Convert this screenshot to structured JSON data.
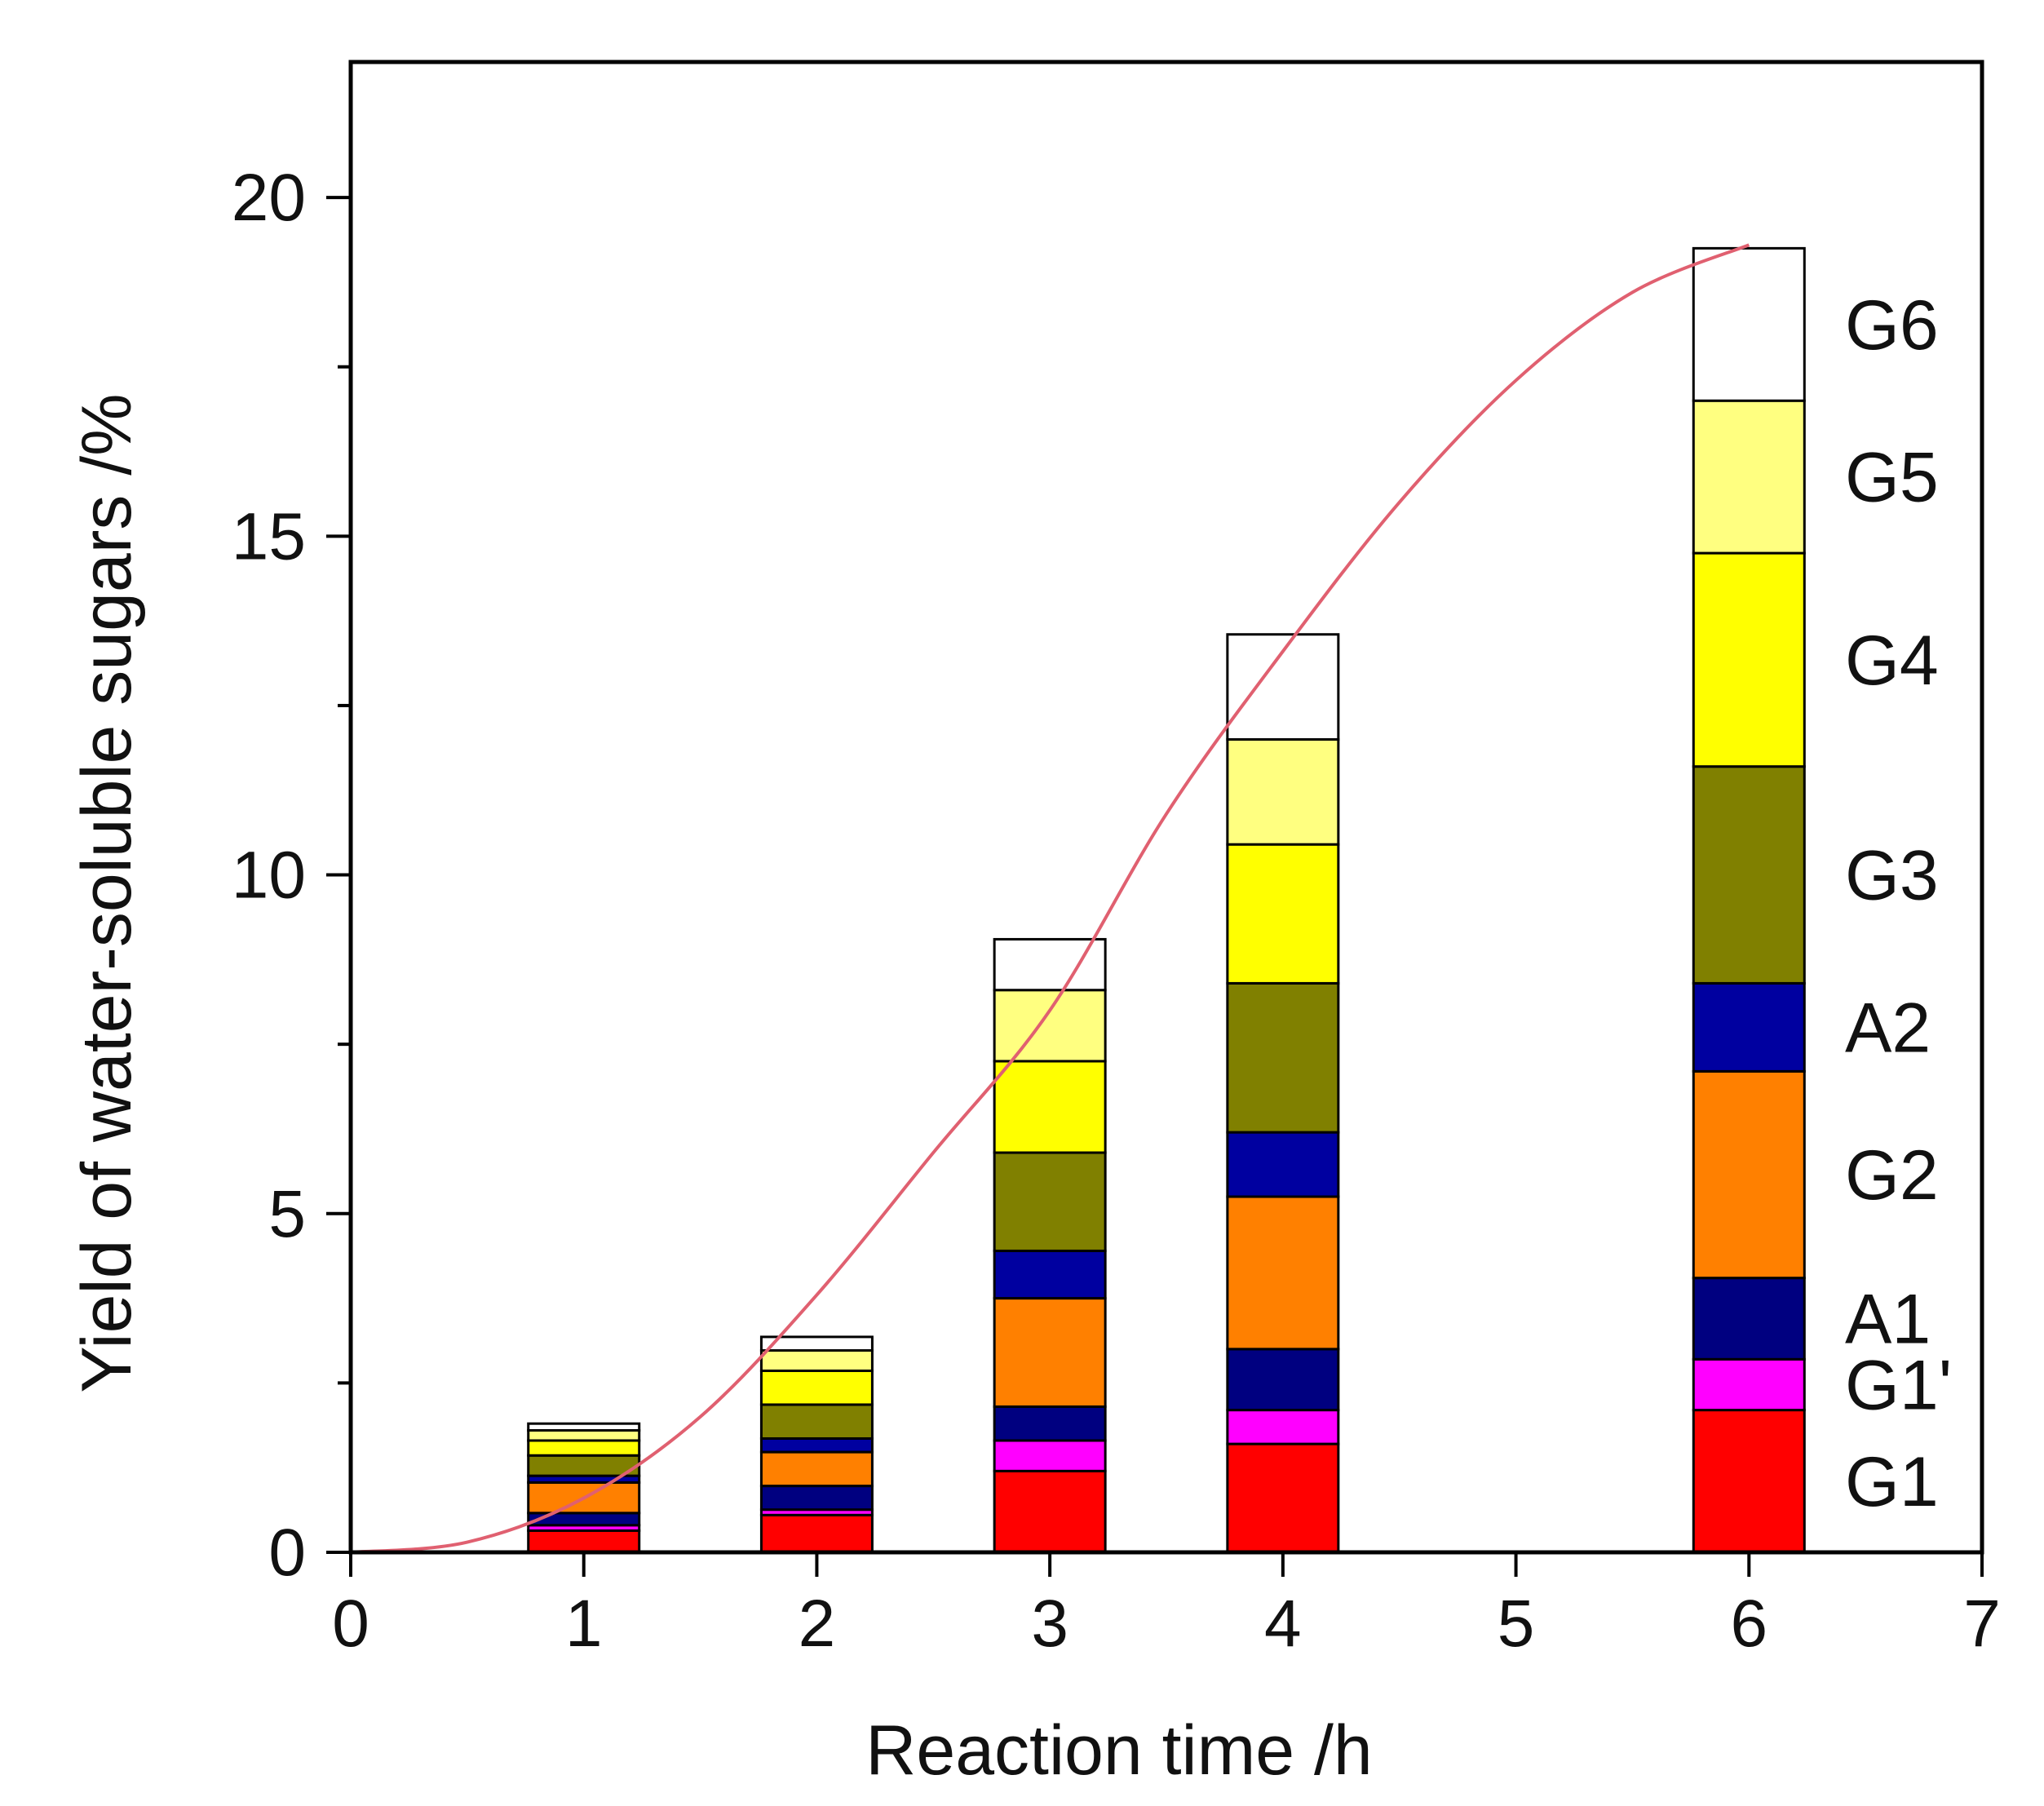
{
  "chart_data": {
    "type": "bar",
    "title": "",
    "xlabel": "Reaction time /h",
    "ylabel": "Yield of water-soluble sugars /%",
    "xlim": [
      0,
      7
    ],
    "ylim": [
      0,
      22
    ],
    "x_ticks": [
      "0",
      "1",
      "2",
      "3",
      "4",
      "5",
      "6",
      "7"
    ],
    "y_ticks": [
      "0",
      "5",
      "10",
      "15",
      "20"
    ],
    "bar_x": [
      1,
      2,
      3,
      4,
      6
    ],
    "series": [
      {
        "name": "G1",
        "color": "#ff0000",
        "values": [
          0.32,
          0.55,
          1.2,
          1.6,
          2.1
        ]
      },
      {
        "name": "G1'",
        "color": "#ff00ff",
        "values": [
          0.08,
          0.08,
          0.45,
          0.5,
          0.75
        ]
      },
      {
        "name": "A1",
        "color": "#000080",
        "values": [
          0.18,
          0.35,
          0.5,
          0.9,
          1.2
        ]
      },
      {
        "name": "G2",
        "color": "#ff8000",
        "values": [
          0.45,
          0.5,
          1.6,
          2.25,
          3.05
        ]
      },
      {
        "name": "A2",
        "color": "#0000a0",
        "values": [
          0.1,
          0.2,
          0.7,
          0.95,
          1.3
        ]
      },
      {
        "name": "G3",
        "color": "#808000",
        "values": [
          0.3,
          0.5,
          1.45,
          2.2,
          3.2
        ]
      },
      {
        "name": "G4",
        "color": "#ffff00",
        "values": [
          0.22,
          0.5,
          1.35,
          2.05,
          3.15
        ]
      },
      {
        "name": "G5",
        "color": "#ffff80",
        "values": [
          0.15,
          0.3,
          1.05,
          1.55,
          2.25
        ]
      },
      {
        "name": "G6",
        "color": "#ffffff",
        "values": [
          0.1,
          0.2,
          0.75,
          1.55,
          2.25
        ]
      }
    ],
    "totals": [
      1.9,
      3.2,
      9.05,
      13.55,
      19.25
    ],
    "curve": {
      "color": "#e06070",
      "x": [
        0,
        0.5,
        1,
        1.5,
        2,
        2.5,
        3,
        3.5,
        4,
        4.5,
        5,
        5.5,
        6
      ],
      "y": [
        0,
        0.15,
        0.8,
        2.0,
        3.8,
        5.9,
        8.0,
        10.9,
        13.3,
        15.5,
        17.3,
        18.6,
        19.3
      ]
    }
  }
}
